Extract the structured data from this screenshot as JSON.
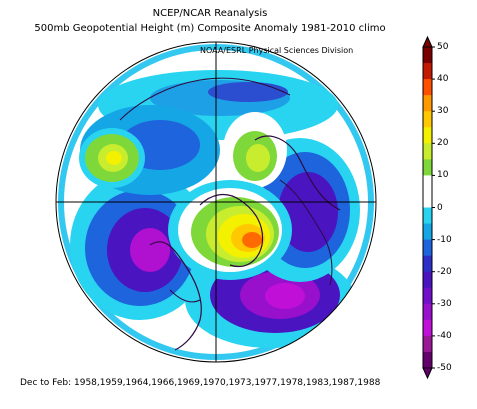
{
  "title": {
    "line1": "NCEP/NCAR Reanalysis",
    "line2": "500mb Geopotential Height (m) Composite Anomaly 1981-2010 climo",
    "credit": "NOAA/ESRL Physical Sciences Division"
  },
  "footer": "Dec to Feb: 1958,1959,1964,1966,1969,1970,1973,1977,1978,1983,1987,1988",
  "colorbar": {
    "labels": [
      "50",
      "40",
      "30",
      "20",
      "10",
      "0",
      "-10",
      "-20",
      "-30",
      "-40",
      "-50"
    ],
    "colors": [
      "#7a0000",
      "#c21a00",
      "#ff5000",
      "#ff9900",
      "#ffc800",
      "#f3f000",
      "#c8ec2e",
      "#7fd83a",
      "#ffffff",
      "#ffffff",
      "#28d4f0",
      "#15a6e6",
      "#1e64dc",
      "#2c30c8",
      "#4a14c0",
      "#7010c8",
      "#9810cc",
      "#c010d8",
      "#9a1896",
      "#64006c"
    ]
  },
  "map": {
    "projection": "north polar stereographic",
    "anomaly_field": {
      "units": "m",
      "features": [
        {
          "name": "positive anomaly over Greenland / Arctic",
          "peak": 40
        },
        {
          "name": "positive anomaly over North Pacific",
          "peak": 20
        },
        {
          "name": "positive anomaly over Scandinavia",
          "peak": 20
        },
        {
          "name": "negative anomaly over Siberia",
          "peak": -40
        },
        {
          "name": "negative anomaly over North Atlantic / Europe",
          "peak": -40
        },
        {
          "name": "negative anomaly over Pacific / Alaska",
          "peak": -35
        }
      ]
    }
  }
}
